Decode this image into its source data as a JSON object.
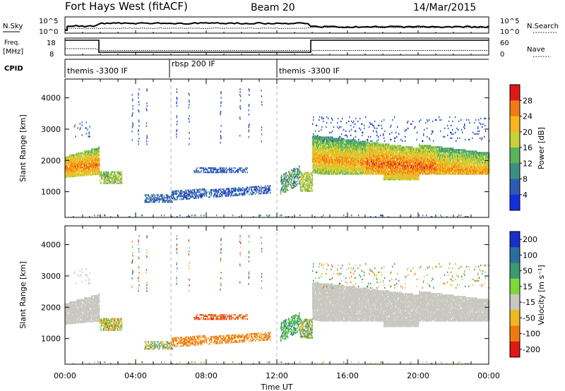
{
  "header": {
    "station": "Fort Hays West (fitACF)",
    "beam": "Beam 20",
    "date": "14/Mar/2015"
  },
  "nsky_panel": {
    "left_label": "N.Sky",
    "left_ticks": [
      "10^5",
      "10^0"
    ],
    "right_label": "N.Search",
    "right_ticks": [
      "10^5",
      "10^0"
    ]
  },
  "freq_panel": {
    "left_label_top": "Freq.",
    "left_label_bottom": "[MHz]",
    "left_ticks": [
      "18",
      "8"
    ],
    "right_label": "Nave",
    "right_ticks": [
      "60",
      "0"
    ]
  },
  "cpid_panel": {
    "label": "CPID",
    "segments": [
      "themis -3300 IF",
      "rbsp 200 IF",
      "themis -3300 IF"
    ]
  },
  "colors": {
    "power": [
      "#1030e0",
      "#2e5ab4",
      "#3b8f82",
      "#5bb45a",
      "#c8d23a",
      "#f6b61c",
      "#f07a14",
      "#e01818"
    ],
    "velocity": [
      "#1a2ecc",
      "#2a6ea0",
      "#3a9a72",
      "#7ed83c",
      "#c8c8c0",
      "#f0b820",
      "#f07a10",
      "#e01818"
    ]
  },
  "chart_data": [
    {
      "type": "heatmap",
      "xlabel": "",
      "ylabel": "Slant Range [km]",
      "x_ticks": [
        "00:00",
        "04:00",
        "08:00",
        "12:00",
        "16:00",
        "20:00",
        "00:00"
      ],
      "y_ticks": [
        "1000",
        "2000",
        "3000",
        "4000"
      ],
      "xlim": [
        0,
        24
      ],
      "ylim": [
        180,
        4600
      ],
      "colorbar_label": "Power [dB]",
      "colorbar_ticks": [
        "4",
        "8",
        "12",
        "16",
        "20",
        "24",
        "28"
      ],
      "colorbar_range": [
        0,
        32
      ]
    },
    {
      "type": "heatmap",
      "xlabel": "Time UT",
      "ylabel": "Slant Range [km]",
      "x_ticks": [
        "00:00",
        "04:00",
        "08:00",
        "12:00",
        "16:00",
        "20:00",
        "00:00"
      ],
      "y_ticks": [
        "1000",
        "2000",
        "3000",
        "4000"
      ],
      "xlim": [
        0,
        24
      ],
      "ylim": [
        180,
        4600
      ],
      "colorbar_label": "Velocity [m s⁻¹]",
      "colorbar_ticks": [
        "200",
        "100",
        "50",
        "15",
        "-15",
        "-50",
        "-100",
        "-200"
      ]
    }
  ]
}
